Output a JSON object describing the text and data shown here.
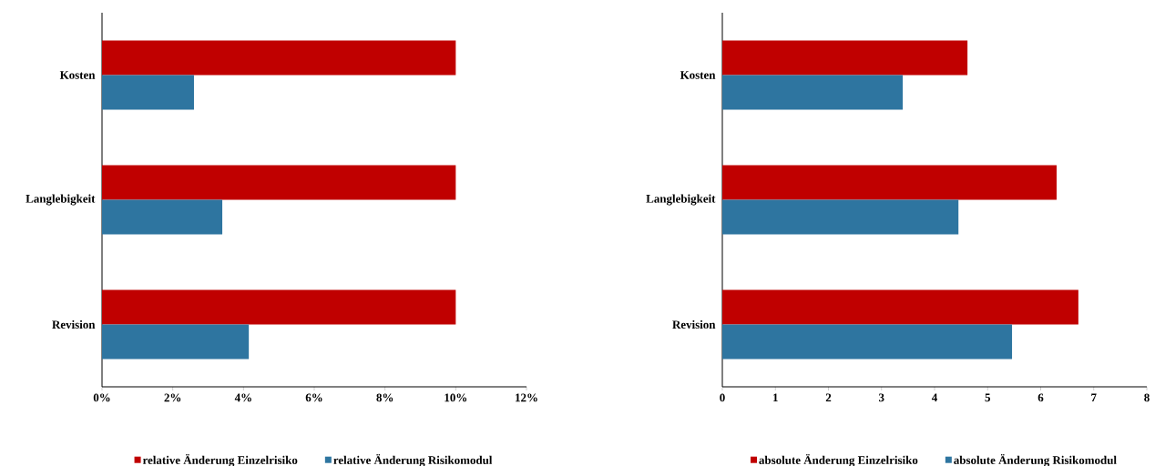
{
  "chart_data": [
    {
      "type": "bar",
      "orientation": "horizontal",
      "categories": [
        "Kosten",
        "Langlebigkeit",
        "Revision"
      ],
      "series": [
        {
          "name": "relative Änderung Einzelrisiko",
          "color": "#c00000",
          "values": [
            10,
            10,
            10
          ]
        },
        {
          "name": "relative Änderung Risikomodul",
          "color": "#2e75a0",
          "values": [
            2.6,
            3.4,
            4.15
          ]
        }
      ],
      "xlim": [
        0,
        12
      ],
      "xticks": [
        {
          "value": 0,
          "label": "0%"
        },
        {
          "value": 2,
          "label": "2%"
        },
        {
          "value": 4,
          "label": "4%"
        },
        {
          "value": 6,
          "label": "6%"
        },
        {
          "value": 8,
          "label": "8%"
        },
        {
          "value": 10,
          "label": "10%"
        },
        {
          "value": 12,
          "label": "12%"
        }
      ],
      "legend": "bottom",
      "grid": false
    },
    {
      "type": "bar",
      "orientation": "horizontal",
      "categories": [
        "Kosten",
        "Langlebigkeit",
        "Revision"
      ],
      "series": [
        {
          "name": "absolute Änderung Einzelrisiko",
          "color": "#c00000",
          "values": [
            4.62,
            6.3,
            6.71
          ]
        },
        {
          "name": "absolute Änderung Risikomodul",
          "color": "#2e75a0",
          "values": [
            3.4,
            4.45,
            5.46
          ]
        }
      ],
      "xlim": [
        0,
        8
      ],
      "xticks": [
        0,
        1,
        2,
        3,
        4,
        5,
        6,
        7,
        8
      ],
      "legend": "bottom",
      "grid": false
    }
  ]
}
